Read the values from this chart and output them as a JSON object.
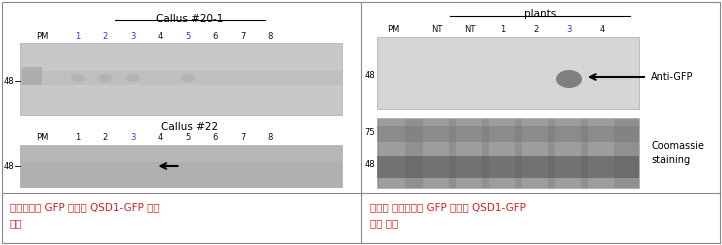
{
  "fig_width": 7.22,
  "fig_height": 2.45,
  "dpi": 100,
  "bg_color": "#ffffff",
  "left_panel": {
    "callus20_title": "Callus #20-1",
    "callus22_title": "Callus #22",
    "pm_label": "PM",
    "lane_labels_20": [
      "1",
      "2",
      "3",
      "4",
      "5",
      "6",
      "7",
      "8"
    ],
    "lane_colors_20": [
      "#3333cc",
      "#3333cc",
      "#3333cc",
      "#111111",
      "#3333cc",
      "#111111",
      "#111111",
      "#111111"
    ],
    "lane_labels_22": [
      "1",
      "2",
      "3",
      "4",
      "5",
      "6",
      "7",
      "8"
    ],
    "lane_colors_22": [
      "#111111",
      "#111111",
      "#3333cc",
      "#111111",
      "#111111",
      "#111111",
      "#111111",
      "#111111"
    ],
    "marker_label": "48",
    "caption_line1": "쫄리스에서 GFP 항체로 QSD1-GFP 발현",
    "caption_line2": "확인",
    "caption_color": "#cc2222"
  },
  "right_panel": {
    "plants_title": "plants",
    "pm_label": "PM",
    "lane_labels": [
      "NT",
      "NT",
      "1",
      "2",
      "3",
      "4"
    ],
    "lane_colors": [
      "#111111",
      "#111111",
      "#111111",
      "#111111",
      "#3333cc",
      "#111111"
    ],
    "marker_top": "48",
    "marker_bot1": "75",
    "marker_bot2": "48",
    "anti_gfp_label": "Anti-GFP",
    "coomassie_label": "Coomassie\nstaining",
    "caption_line1": "재분화 식물체에서 GFP 항체로 QSD1-GFP",
    "caption_line2": "발현 확인",
    "caption_color": "#cc2222"
  }
}
